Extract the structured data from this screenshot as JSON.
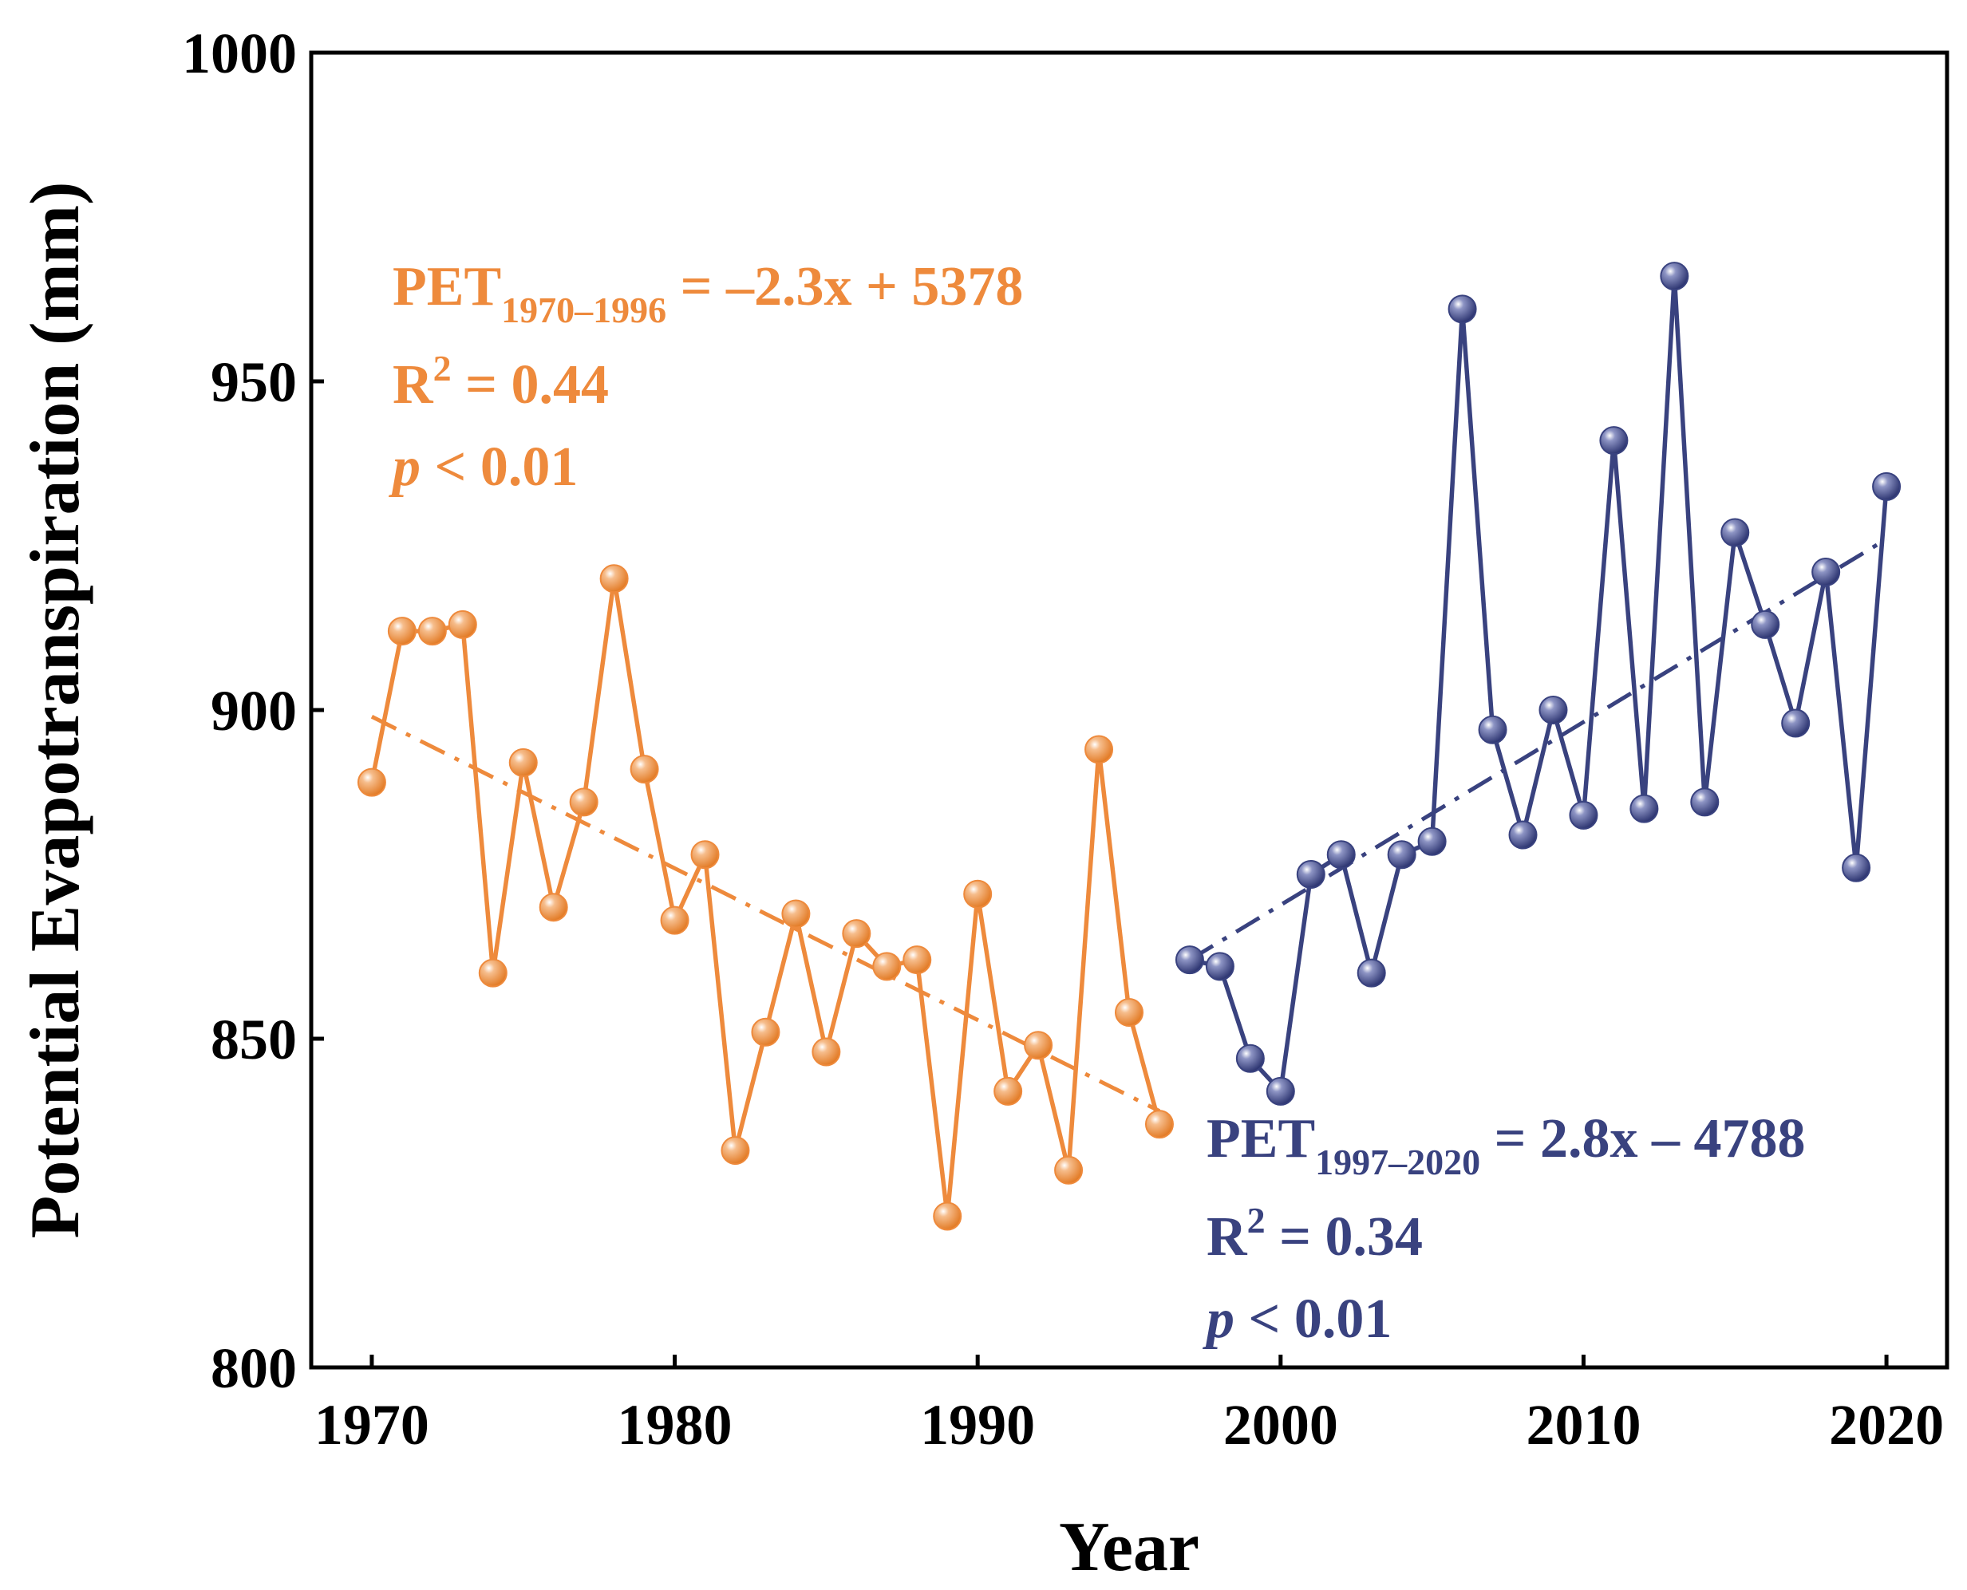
{
  "chart_data": {
    "type": "line",
    "xlabel": "Year",
    "ylabel": "Potential Evapotranspiration (mm)",
    "xlim": [
      1968,
      2022
    ],
    "ylim": [
      800,
      1000
    ],
    "x_ticks": [
      1970,
      1980,
      1990,
      2000,
      2010,
      2020
    ],
    "y_ticks": [
      800,
      850,
      900,
      950,
      1000
    ],
    "grid": false,
    "series": [
      {
        "color": "#EE8A3C",
        "x": [
          1970,
          1971,
          1972,
          1973,
          1974,
          1975,
          1976,
          1977,
          1978,
          1979,
          1980,
          1981,
          1982,
          1983,
          1984,
          1985,
          1986,
          1987,
          1988,
          1989,
          1990,
          1991,
          1992,
          1993,
          1994,
          1995,
          1996
        ],
        "y": [
          889,
          912,
          912,
          913,
          860,
          892,
          870,
          886,
          920,
          891,
          868,
          878,
          833,
          851,
          869,
          848,
          866,
          861,
          862,
          823,
          872,
          842,
          849,
          830,
          894,
          854,
          837
        ],
        "trend": {
          "x": [
            1970,
            1996
          ],
          "y": [
            899,
            839
          ],
          "style": "dash-dot"
        }
      },
      {
        "color": "#39427F",
        "x": [
          1997,
          1998,
          1999,
          2000,
          2001,
          2002,
          2003,
          2004,
          2005,
          2006,
          2007,
          2008,
          2009,
          2010,
          2011,
          2012,
          2013,
          2014,
          2015,
          2016,
          2017,
          2018,
          2019,
          2020
        ],
        "y": [
          862,
          861,
          847,
          842,
          875,
          878,
          860,
          878,
          880,
          961,
          897,
          881,
          900,
          884,
          941,
          885,
          966,
          886,
          927,
          913,
          898,
          921,
          876,
          934
        ],
        "trend": {
          "x": [
            1997,
            2020
          ],
          "y": [
            862,
            926
          ],
          "style": "dash-dot"
        }
      }
    ],
    "annotations": [
      {
        "color": "#EE8A3C",
        "equation": {
          "lhs": "PET",
          "subscript": "1970–1996",
          "rhs": " = –2.3x + 5378"
        },
        "r2": {
          "prefix": "R",
          "sup": "2",
          "rest": " = 0.44"
        },
        "p": {
          "italic": "p",
          "rest": " < 0.01"
        }
      },
      {
        "color": "#39427F",
        "equation": {
          "lhs": "PET",
          "subscript": "1997–2020",
          "rhs": " = 2.8x – 4788"
        },
        "r2": {
          "prefix": "R",
          "sup": "2",
          "rest": " = 0.34"
        },
        "p": {
          "italic": "p",
          "rest": " < 0.01"
        }
      }
    ]
  }
}
